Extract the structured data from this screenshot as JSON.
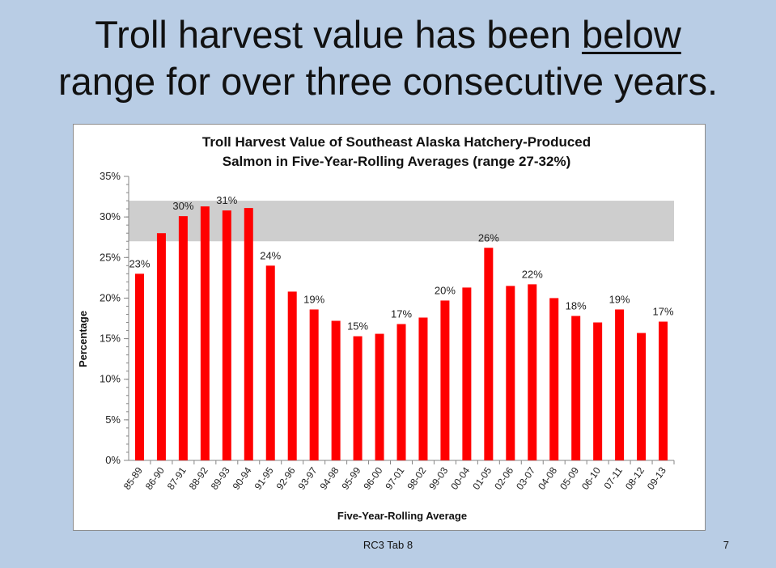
{
  "slide": {
    "title_line1_prefix": "Troll harvest value has been ",
    "title_line1_underlined": "below",
    "title_line2": "range for over three consecutive years.",
    "footer": "RC3 Tab 8",
    "page_number": "7"
  },
  "colors": {
    "background": "#b9cde5",
    "bar": "#ff0000",
    "range_band": "#a6a6a6"
  },
  "chart_data": {
    "type": "bar",
    "title_line1": "Troll Harvest Value of Southeast Alaska Hatchery-Produced",
    "title_line2": "Salmon in Five-Year-Rolling Averages (range 27-32%)",
    "xlabel": "Five-Year-Rolling Average",
    "ylabel": "Percentage",
    "ylim": [
      0,
      35
    ],
    "yticks": [
      0,
      5,
      10,
      15,
      20,
      25,
      30,
      35
    ],
    "ytick_labels": [
      "0%",
      "5%",
      "10%",
      "15%",
      "20%",
      "25%",
      "30%",
      "35%"
    ],
    "range_band": [
      27,
      32
    ],
    "categories": [
      "85-89",
      "86-90",
      "87-91",
      "88-92",
      "89-93",
      "90-94",
      "91-95",
      "92-96",
      "93-97",
      "94-98",
      "95-99",
      "96-00",
      "97-01",
      "98-02",
      "99-03",
      "00-04",
      "01-05",
      "02-06",
      "03-07",
      "04-08",
      "05-09",
      "06-10",
      "07-11",
      "08-12",
      "09-13"
    ],
    "values": [
      23,
      28,
      30.1,
      31.3,
      30.8,
      31.1,
      24,
      20.8,
      18.6,
      17.2,
      15.3,
      15.6,
      16.8,
      17.6,
      19.7,
      21.3,
      26.2,
      21.5,
      21.7,
      20,
      17.8,
      17,
      18.6,
      15.7,
      17.1
    ],
    "data_labels": [
      "23%",
      null,
      "30%",
      null,
      "31%",
      null,
      "24%",
      null,
      "19%",
      null,
      "15%",
      null,
      "17%",
      null,
      "20%",
      null,
      "26%",
      null,
      "22%",
      null,
      "18%",
      null,
      "19%",
      null,
      "17%"
    ]
  }
}
